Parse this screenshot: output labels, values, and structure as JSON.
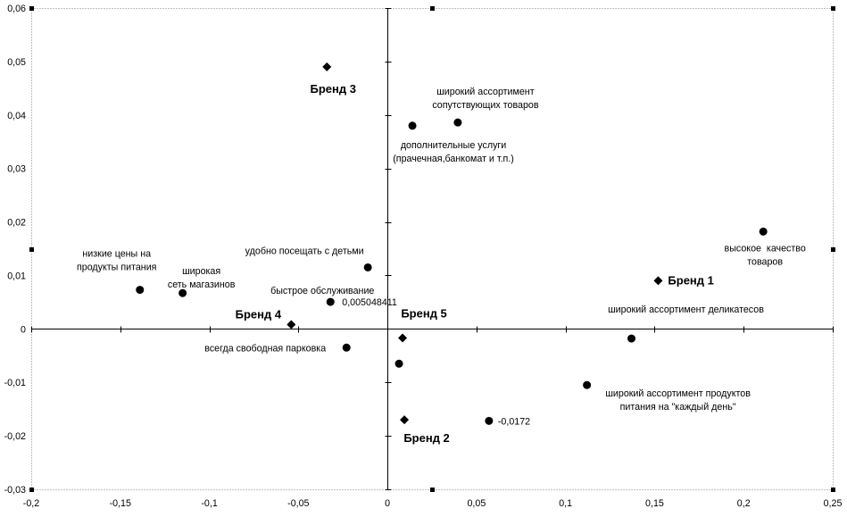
{
  "chart_data": {
    "type": "scatter",
    "xlim": [
      -0.2,
      0.25
    ],
    "ylim": [
      -0.03,
      0.06
    ],
    "grid": false,
    "legend": false,
    "x_ticks": [
      {
        "value": -0.2,
        "label": "-0,2"
      },
      {
        "value": -0.15,
        "label": "-0,15"
      },
      {
        "value": -0.1,
        "label": "-0,1"
      },
      {
        "value": -0.05,
        "label": "-0,05"
      },
      {
        "value": 0,
        "label": "0"
      },
      {
        "value": 0.05,
        "label": "0,05"
      },
      {
        "value": 0.1,
        "label": "0,1"
      },
      {
        "value": 0.15,
        "label": "0,15"
      },
      {
        "value": 0.2,
        "label": "0,2"
      },
      {
        "value": 0.25,
        "label": "0,25"
      }
    ],
    "y_ticks": [
      {
        "value": 0.06,
        "label": "0,06"
      },
      {
        "value": 0.05,
        "label": "0,05"
      },
      {
        "value": 0.04,
        "label": "0,04"
      },
      {
        "value": 0.03,
        "label": "0,03"
      },
      {
        "value": 0.02,
        "label": "0,02"
      },
      {
        "value": 0.01,
        "label": "0,01"
      },
      {
        "value": 0,
        "label": "0"
      },
      {
        "value": -0.01,
        "label": "-0,01"
      },
      {
        "value": -0.02,
        "label": "-0,02"
      },
      {
        "value": -0.03,
        "label": "-0,03"
      }
    ],
    "series": [
      {
        "marker": "circle",
        "points": [
          {
            "x": -0.139,
            "y": 0.0073,
            "label": [
              "низкие цены на",
              "продукты питания"
            ]
          },
          {
            "x": -0.115,
            "y": 0.0067,
            "label": [
              "широкая",
              "сеть магазинов"
            ]
          },
          {
            "x": -0.011,
            "y": 0.0115,
            "label": [
              "удобно посещать с детьми"
            ]
          },
          {
            "x": -0.032,
            "y": 0.005048411,
            "label": [
              "быстрое обслуживание"
            ],
            "value_label": "0,005048411"
          },
          {
            "x": -0.023,
            "y": -0.0035,
            "label": [
              "всегда свободная парковка"
            ]
          },
          {
            "x": 0.014,
            "y": 0.038,
            "label": [
              "дополнительные услуги",
              "(прачечная,банкомат и т.п.)"
            ]
          },
          {
            "x": 0.0395,
            "y": 0.0386,
            "label": [
              "широкий ассортимент",
              "сопутствующих товаров"
            ]
          },
          {
            "x": 0.0065,
            "y": -0.0065
          },
          {
            "x": 0.057,
            "y": -0.0172,
            "value_label": "-0,0172"
          },
          {
            "x": 0.112,
            "y": -0.0105,
            "label": [
              "широкий ассортимент продуктов",
              "питания на \"каждый день\""
            ]
          },
          {
            "x": 0.137,
            "y": -0.0018,
            "label": [
              "широкий ассортимент деликатесов"
            ]
          },
          {
            "x": 0.211,
            "y": 0.0182,
            "label": [
              "высокое  качество",
              "товаров"
            ]
          }
        ]
      },
      {
        "marker": "diamond",
        "points": [
          {
            "x": -0.034,
            "y": 0.049,
            "label": [
              "Бренд 3"
            ]
          },
          {
            "x": -0.054,
            "y": 0.0008,
            "label": [
              "Бренд 4"
            ]
          },
          {
            "x": 0.0085,
            "y": -0.0017,
            "label": [
              "Бренд 5"
            ]
          },
          {
            "x": 0.0095,
            "y": -0.017,
            "label": [
              "Бренд 2"
            ]
          },
          {
            "x": 0.152,
            "y": 0.009,
            "label": [
              "Бренд 1"
            ]
          }
        ]
      }
    ]
  },
  "colors": {
    "background": "#ffffff",
    "axis": "#000000",
    "marker": "#000000",
    "text": "#000000",
    "plot_border": "#808080",
    "handle": "#000000"
  }
}
